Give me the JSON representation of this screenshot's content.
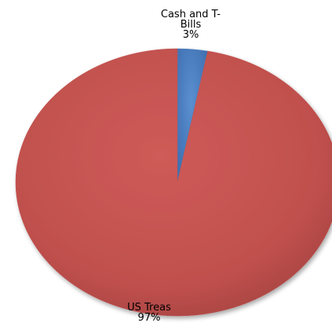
{
  "chart_data": {
    "type": "pie",
    "title": "",
    "slices": [
      {
        "label_lines": [
          "Cash and T-",
          "Bills"
        ],
        "percent_label": "3%",
        "value": 3,
        "color": "#4f81bd"
      },
      {
        "label_lines": [
          "US Treas"
        ],
        "percent_label": "97%",
        "value": 97,
        "color": "#c0504d"
      }
    ],
    "start_angle_deg": 0,
    "direction": "clockwise",
    "style": "3d-shaded",
    "legend": "none"
  }
}
